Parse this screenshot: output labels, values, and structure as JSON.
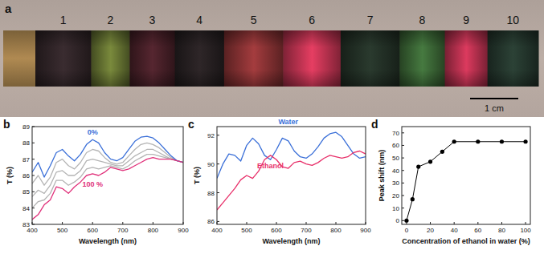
{
  "photo": {
    "label": "a",
    "lead_color": "#b08a52",
    "background": "#bcaea6",
    "scale_bar": "1 cm",
    "segments": [
      {
        "label": "1",
        "color": "#3a2c30"
      },
      {
        "label": "2",
        "color": "#7a8a3c"
      },
      {
        "label": "3",
        "color": "#562630"
      },
      {
        "label": "4",
        "color": "#2e2628"
      },
      {
        "label": "5",
        "color": "#a43c3e"
      },
      {
        "label": "6",
        "color": "#e63e62"
      },
      {
        "label": "7",
        "color": "#2a3a2e"
      },
      {
        "label": "8",
        "color": "#467a40"
      },
      {
        "label": "9",
        "color": "#dc3a5e"
      },
      {
        "label": "10",
        "color": "#2c4236"
      }
    ]
  },
  "chart_data": [
    {
      "type": "line",
      "label": "b",
      "x_label": "Wavelength (nm)",
      "y_label": "T (%)",
      "x": [
        400,
        420,
        440,
        460,
        480,
        500,
        520,
        540,
        560,
        580,
        600,
        620,
        640,
        660,
        680,
        700,
        720,
        740,
        760,
        780,
        800,
        820,
        840,
        860,
        880,
        900
      ],
      "xlim": [
        400,
        900
      ],
      "xticks": [
        400,
        500,
        600,
        700,
        800,
        900
      ],
      "ylim": [
        83,
        89
      ],
      "yticks": [
        83,
        84,
        85,
        86,
        87,
        88,
        89
      ],
      "series": [
        {
          "color": "#b4b4b4",
          "values": [
            85.5,
            86.0,
            85.4,
            85.9,
            86.8,
            87.0,
            86.6,
            86.4,
            86.8,
            87.4,
            87.6,
            87.5,
            87.1,
            86.8,
            86.7,
            86.8,
            87.2,
            87.6,
            87.9,
            88.0,
            87.9,
            87.7,
            87.4,
            87.1,
            86.9,
            86.8
          ]
        },
        {
          "color": "#b4b4b4",
          "values": [
            84.7,
            85.1,
            84.9,
            85.4,
            86.2,
            86.3,
            86.0,
            86.0,
            86.3,
            86.9,
            87.0,
            86.9,
            86.8,
            86.7,
            86.6,
            86.6,
            86.9,
            87.2,
            87.4,
            87.6,
            87.6,
            87.4,
            87.2,
            87.0,
            86.9,
            86.8
          ]
        },
        {
          "color": "#b4b4b4",
          "values": [
            84.0,
            84.4,
            84.5,
            84.9,
            85.7,
            85.7,
            85.4,
            85.6,
            85.9,
            86.4,
            86.5,
            86.4,
            86.5,
            86.6,
            86.5,
            86.4,
            86.6,
            86.9,
            87.1,
            87.3,
            87.3,
            87.2,
            87.1,
            87.0,
            86.9,
            86.8
          ]
        },
        {
          "name": "0%",
          "color": "#3a6fd8",
          "values": [
            86.2,
            86.8,
            85.9,
            86.6,
            87.4,
            87.6,
            87.2,
            86.9,
            87.3,
            87.9,
            88.2,
            88.0,
            87.4,
            87.0,
            86.9,
            87.1,
            87.6,
            88.1,
            88.35,
            88.4,
            88.3,
            88.0,
            87.6,
            87.2,
            86.9,
            86.8
          ]
        },
        {
          "name": "100 %",
          "color": "#e0307a",
          "values": [
            83.3,
            83.6,
            84.2,
            84.5,
            85.3,
            85.2,
            84.9,
            85.3,
            85.6,
            86.0,
            86.1,
            86.0,
            86.2,
            86.5,
            86.4,
            86.3,
            86.4,
            86.6,
            86.8,
            87.0,
            87.1,
            87.0,
            87.0,
            87.0,
            86.9,
            86.8
          ]
        }
      ]
    },
    {
      "type": "line",
      "label": "c",
      "x_label": "Wavelength (nm)",
      "y_label": "T (%)",
      "x": [
        400,
        420,
        440,
        460,
        480,
        500,
        520,
        540,
        560,
        580,
        600,
        620,
        640,
        660,
        680,
        700,
        720,
        740,
        760,
        780,
        800,
        820,
        840,
        860,
        880,
        900
      ],
      "xlim": [
        400,
        900
      ],
      "xticks": [
        400,
        500,
        600,
        700,
        800,
        900
      ],
      "ylim": [
        85.8,
        92.6
      ],
      "yticks": [
        86,
        88,
        90,
        92
      ],
      "series": [
        {
          "name": "Water",
          "color": "#3a6fd8",
          "values": [
            89.0,
            90.0,
            90.7,
            90.6,
            90.2,
            91.3,
            91.8,
            91.4,
            90.6,
            90.3,
            91.0,
            91.8,
            91.6,
            90.9,
            90.5,
            90.4,
            90.7,
            91.2,
            91.8,
            92.1,
            92.2,
            91.9,
            91.3,
            90.7,
            90.4,
            90.5
          ]
        },
        {
          "name": "Ethanol",
          "color": "#e8306a",
          "values": [
            86.8,
            87.3,
            87.8,
            88.3,
            88.9,
            89.2,
            89.0,
            89.5,
            90.3,
            90.6,
            90.3,
            89.8,
            89.7,
            90.1,
            90.2,
            90.0,
            89.9,
            90.1,
            90.4,
            90.6,
            90.5,
            90.4,
            90.5,
            90.8,
            90.9,
            90.7
          ]
        }
      ]
    },
    {
      "type": "line",
      "label": "d",
      "x_label": "Concentration of ethanol in water (%)",
      "y_label": "Peak shift (nm)",
      "x": [
        0,
        5,
        10,
        20,
        30,
        40,
        60,
        80,
        100
      ],
      "xlim": [
        -4,
        104
      ],
      "xticks": [
        0,
        20,
        40,
        60,
        80,
        100
      ],
      "ylim": [
        -3,
        75
      ],
      "yticks": [
        0,
        10,
        20,
        30,
        40,
        50,
        60,
        70
      ],
      "series": [
        {
          "color": "#000000",
          "marker": "circle",
          "values": [
            0,
            17,
            43,
            47,
            55,
            63,
            63,
            63,
            63
          ]
        }
      ]
    }
  ]
}
